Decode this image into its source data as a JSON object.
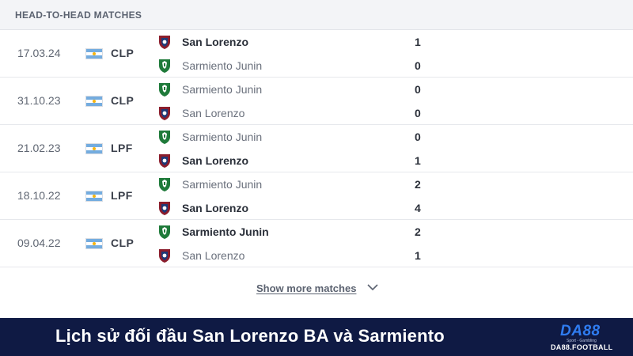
{
  "header": {
    "title": "HEAD-TO-HEAD MATCHES"
  },
  "matches": [
    {
      "date": "17.03.24",
      "competition": "CLP",
      "home": {
        "name": "San Lorenzo",
        "score": "1",
        "crest": "san-lorenzo-crest",
        "winner": true
      },
      "away": {
        "name": "Sarmiento Junin",
        "score": "0",
        "crest": "sarmiento-crest",
        "winner": false
      }
    },
    {
      "date": "31.10.23",
      "competition": "CLP",
      "home": {
        "name": "Sarmiento Junin",
        "score": "0",
        "crest": "sarmiento-crest",
        "winner": false
      },
      "away": {
        "name": "San Lorenzo",
        "score": "0",
        "crest": "san-lorenzo-crest",
        "winner": false
      }
    },
    {
      "date": "21.02.23",
      "competition": "LPF",
      "home": {
        "name": "Sarmiento Junin",
        "score": "0",
        "crest": "sarmiento-crest",
        "winner": false
      },
      "away": {
        "name": "San Lorenzo",
        "score": "1",
        "crest": "san-lorenzo-crest",
        "winner": true
      }
    },
    {
      "date": "18.10.22",
      "competition": "LPF",
      "home": {
        "name": "Sarmiento Junin",
        "score": "2",
        "crest": "sarmiento-crest",
        "winner": false
      },
      "away": {
        "name": "San Lorenzo",
        "score": "4",
        "crest": "san-lorenzo-crest",
        "winner": true
      }
    },
    {
      "date": "09.04.22",
      "competition": "CLP",
      "home": {
        "name": "Sarmiento Junin",
        "score": "2",
        "crest": "sarmiento-crest",
        "winner": true
      },
      "away": {
        "name": "San Lorenzo",
        "score": "1",
        "crest": "san-lorenzo-crest",
        "winner": false
      }
    }
  ],
  "show_more": {
    "label": "Show more matches",
    "icon": "chevron-down-icon"
  },
  "banner": {
    "title": "Lịch sử đối đầu San Lorenzo BA và Sarmiento"
  },
  "logo": {
    "mark": "DA88",
    "tagline": "Sport - Gambling",
    "domain": "DA88.FOOTBALL"
  },
  "colors": {
    "san_lorenzo": "#8b1d2c",
    "sarmiento": "#1f7a3a",
    "argentina_blue": "#74acdf",
    "banner_bg": "#0f1a44"
  }
}
